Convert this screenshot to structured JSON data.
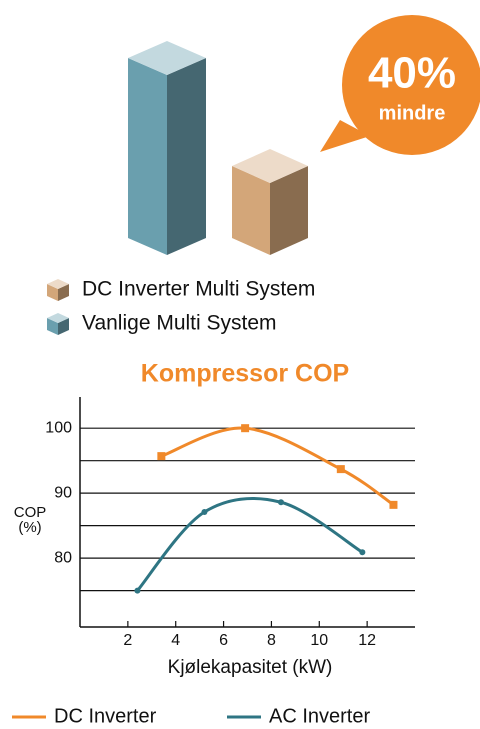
{
  "chart_data": [
    {
      "type": "bar3d",
      "annotation": [
        "40%",
        "mindre"
      ],
      "ylim": [
        0,
        100
      ],
      "series": [
        {
          "name": "DC Inverter Multi System",
          "color": "#d3a679",
          "values": [
            40
          ]
        },
        {
          "name": "Vanlige Multi System",
          "color": "#6a9fae",
          "values": [
            100
          ]
        }
      ]
    },
    {
      "type": "line",
      "title": "Kompressor COP",
      "xlabel": "Kjølekapasitet (kW)",
      "ylabel": [
        "COP",
        "(%)"
      ],
      "xlim": [
        0,
        14
      ],
      "xticks": [
        2,
        4,
        6,
        8,
        10,
        12
      ],
      "ylim": [
        69.4,
        104.8
      ],
      "yticks": [
        80,
        90,
        100
      ],
      "ygrid": [
        75,
        80,
        85,
        90,
        95,
        100
      ],
      "series": [
        {
          "name": "DC Inverter",
          "color": "#f0892a",
          "marker": "square",
          "x": [
            3.4,
            6.9,
            10.9,
            13.1
          ],
          "values": [
            95.7,
            100,
            93.7,
            88.2
          ]
        },
        {
          "name": "AC Inverter",
          "color": "#2e7583",
          "marker": "circle",
          "x": [
            2.4,
            5.2,
            8.4,
            11.8
          ],
          "values": [
            75,
            87.1,
            88.6,
            80.9
          ]
        }
      ]
    }
  ]
}
